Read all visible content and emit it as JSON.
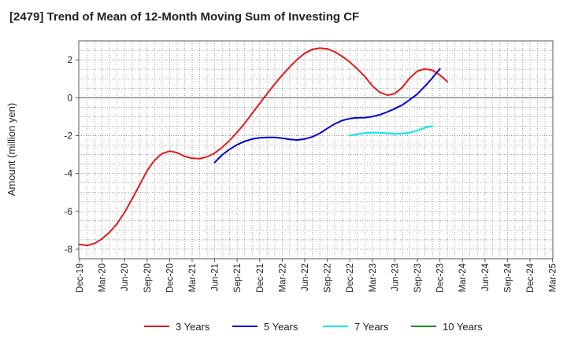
{
  "chart_data": {
    "type": "line",
    "title": "[2479]  Trend of Mean of 12-Month Moving Sum of Investing CF",
    "ylabel": "Amount (million yen)",
    "xlabel": "",
    "ylim": [
      -8.5,
      3.0
    ],
    "yticks": [
      2,
      0,
      -2,
      -4,
      -6,
      -8
    ],
    "ytick_labels": [
      "2",
      "0",
      "-2",
      "-4",
      "-6",
      "-8"
    ],
    "grid": true,
    "legend_position": "bottom",
    "x_categories": [
      "Dec-19",
      "Mar-20",
      "Jun-20",
      "Sep-20",
      "Dec-20",
      "Mar-21",
      "Jun-21",
      "Sep-21",
      "Dec-21",
      "Mar-22",
      "Jun-22",
      "Sep-22",
      "Dec-22",
      "Mar-23",
      "Jun-23",
      "Sep-23",
      "Dec-23",
      "Mar-24",
      "Jun-24",
      "Sep-24",
      "Dec-24",
      "Mar-25"
    ],
    "series": [
      {
        "name": "3 Years",
        "color": "#e41a1c",
        "points": [
          [
            0,
            -7.75
          ],
          [
            0.333,
            -7.8
          ],
          [
            0.667,
            -7.7
          ],
          [
            1,
            -7.45
          ],
          [
            1.333,
            -7.1
          ],
          [
            1.667,
            -6.65
          ],
          [
            2,
            -6.05
          ],
          [
            2.333,
            -5.35
          ],
          [
            2.667,
            -4.6
          ],
          [
            3,
            -3.85
          ],
          [
            3.333,
            -3.3
          ],
          [
            3.667,
            -2.95
          ],
          [
            4,
            -2.82
          ],
          [
            4.333,
            -2.9
          ],
          [
            4.667,
            -3.1
          ],
          [
            5,
            -3.2
          ],
          [
            5.333,
            -3.22
          ],
          [
            5.667,
            -3.12
          ],
          [
            6,
            -2.92
          ],
          [
            6.333,
            -2.62
          ],
          [
            6.667,
            -2.25
          ],
          [
            7,
            -1.82
          ],
          [
            7.333,
            -1.35
          ],
          [
            7.667,
            -0.82
          ],
          [
            8,
            -0.3
          ],
          [
            8.333,
            0.22
          ],
          [
            8.667,
            0.72
          ],
          [
            9,
            1.2
          ],
          [
            9.333,
            1.62
          ],
          [
            9.667,
            2.02
          ],
          [
            10,
            2.35
          ],
          [
            10.333,
            2.55
          ],
          [
            10.667,
            2.62
          ],
          [
            11,
            2.58
          ],
          [
            11.333,
            2.42
          ],
          [
            11.667,
            2.18
          ],
          [
            12,
            1.88
          ],
          [
            12.333,
            1.52
          ],
          [
            12.667,
            1.12
          ],
          [
            13,
            0.62
          ],
          [
            13.333,
            0.28
          ],
          [
            13.667,
            0.13
          ],
          [
            14,
            0.22
          ],
          [
            14.333,
            0.55
          ],
          [
            14.667,
            1.05
          ],
          [
            15,
            1.4
          ],
          [
            15.333,
            1.52
          ],
          [
            15.667,
            1.45
          ],
          [
            16,
            1.2
          ],
          [
            16.333,
            0.85
          ]
        ]
      },
      {
        "name": "5 Years",
        "color": "#0000cc",
        "points": [
          [
            6,
            -3.42
          ],
          [
            6.333,
            -3.02
          ],
          [
            6.667,
            -2.72
          ],
          [
            7,
            -2.48
          ],
          [
            7.333,
            -2.3
          ],
          [
            7.667,
            -2.18
          ],
          [
            8,
            -2.12
          ],
          [
            8.333,
            -2.1
          ],
          [
            8.667,
            -2.1
          ],
          [
            9,
            -2.14
          ],
          [
            9.333,
            -2.2
          ],
          [
            9.667,
            -2.23
          ],
          [
            10,
            -2.18
          ],
          [
            10.333,
            -2.07
          ],
          [
            10.667,
            -1.88
          ],
          [
            11,
            -1.62
          ],
          [
            11.333,
            -1.38
          ],
          [
            11.667,
            -1.2
          ],
          [
            12,
            -1.1
          ],
          [
            12.333,
            -1.06
          ],
          [
            12.667,
            -1.05
          ],
          [
            13,
            -1.0
          ],
          [
            13.333,
            -0.9
          ],
          [
            13.667,
            -0.75
          ],
          [
            14,
            -0.58
          ],
          [
            14.333,
            -0.38
          ],
          [
            14.667,
            -0.1
          ],
          [
            15,
            0.2
          ],
          [
            15.333,
            0.6
          ],
          [
            15.667,
            1.05
          ],
          [
            16,
            1.52
          ]
        ]
      },
      {
        "name": "7 Years",
        "color": "#00e5ee",
        "points": [
          [
            12,
            -2.0
          ],
          [
            12.333,
            -1.92
          ],
          [
            12.667,
            -1.87
          ],
          [
            13,
            -1.84
          ],
          [
            13.333,
            -1.85
          ],
          [
            13.667,
            -1.88
          ],
          [
            14,
            -1.91
          ],
          [
            14.333,
            -1.9
          ],
          [
            14.667,
            -1.84
          ],
          [
            15,
            -1.73
          ],
          [
            15.333,
            -1.58
          ],
          [
            15.667,
            -1.5
          ]
        ]
      },
      {
        "name": "10 Years",
        "color": "#228b22",
        "points": []
      }
    ]
  },
  "legend": [
    {
      "label": "3 Years",
      "color": "#e41a1c"
    },
    {
      "label": "5 Years",
      "color": "#0000cc"
    },
    {
      "label": "7 Years",
      "color": "#00e5ee"
    },
    {
      "label": "10 Years",
      "color": "#228b22"
    }
  ]
}
